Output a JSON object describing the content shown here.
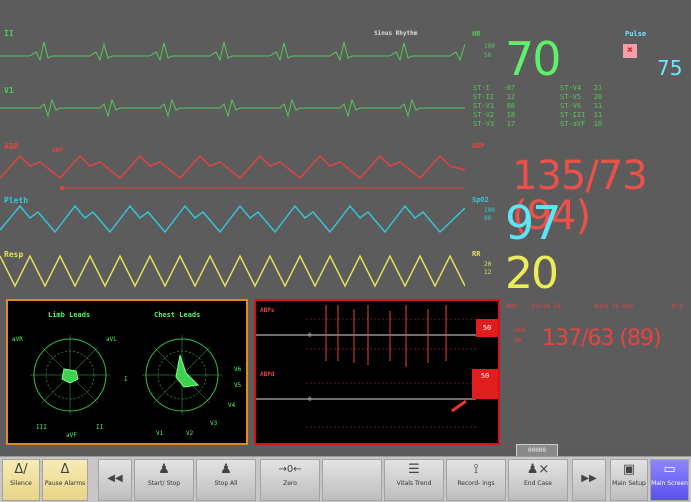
{
  "monitor": {
    "waves": {
      "ecg1": "II",
      "ecg2": "V1",
      "abp": "ABP",
      "abp_inner": "ABP",
      "pleth": "Pleth",
      "resp": "Resp",
      "rhythm": "Sinus Rhythm"
    },
    "hr": {
      "label": "HR",
      "scale_hi": "100",
      "scale_lo": "50",
      "value": "70"
    },
    "pulse": {
      "label": "Pulse",
      "value": "75"
    },
    "st": {
      "left": "ST-I   -07\nST-II   12\nST-V1   08\nST-V2   18\nST-V3   17",
      "right": "ST-V4   21\nST-V5   20\nST-V6   11\nST-III  11\nST-aVF  10"
    },
    "abp_value": {
      "label": "ABP",
      "value": "135/73 (94)"
    },
    "spo2": {
      "label": "SpO2",
      "scale_hi": "100",
      "scale_lo": "90",
      "value": "97"
    },
    "rr": {
      "label": "RR",
      "scale_hi": "20",
      "scale_lo": "12",
      "value": "20"
    },
    "nbp": {
      "label": "NBP",
      "pulse": "Pulse 21",
      "mode": "Auto 15 min",
      "time": "0:0",
      "value": "137/63 (89)",
      "scale_hi": "160",
      "scale_lo": "90"
    }
  },
  "vector_panel": {
    "limb_title": "Limb Leads",
    "chest_title": "Chest Leads",
    "limb_labels": [
      "aVR",
      "aVL",
      "I",
      "aVF",
      "II",
      "III"
    ],
    "chest_labels": [
      "V1",
      "V2",
      "V3",
      "V4",
      "V5",
      "V6"
    ]
  },
  "trend_panel": {
    "abp_label": "ABPs",
    "abp2_label": "ABPd",
    "box1": "50",
    "box2": "50",
    "zero1": "0",
    "zero2": "0"
  },
  "status_box": "00000",
  "toolbar": [
    {
      "icon": "Δ/",
      "label": "Silence",
      "style": "yellow"
    },
    {
      "icon": "Δ",
      "label": "Pause Alarms",
      "style": "yellow"
    },
    {
      "icon": "◀◀",
      "label": "",
      "style": "arrow"
    },
    {
      "icon": "♟",
      "label": "Start/ Stop",
      "style": ""
    },
    {
      "icon": "♟",
      "label": "Stop All",
      "style": ""
    },
    {
      "icon": "→0←",
      "label": "Zero",
      "style": ""
    },
    {
      "icon": "",
      "label": "",
      "style": ""
    },
    {
      "icon": "☰",
      "label": "Vitals Trend",
      "style": ""
    },
    {
      "icon": "⟟",
      "label": "Record- ings",
      "style": ""
    },
    {
      "icon": "♟×",
      "label": "End Case",
      "style": ""
    },
    {
      "icon": "▶▶",
      "label": "",
      "style": "arrow"
    },
    {
      "icon": "▣",
      "label": "Main Setup",
      "style": ""
    },
    {
      "icon": "▭",
      "label": "Main Screen",
      "style": "blue"
    }
  ],
  "colors": {
    "ecg": "#55c85a",
    "abp": "#e8443f",
    "pleth": "#33c8dd",
    "resp": "#e3e05a",
    "hr_value": "#5ef06a",
    "spo2_value": "#5de5f5",
    "rr_value": "#ecec58",
    "pulse": "#6fe6ff"
  }
}
